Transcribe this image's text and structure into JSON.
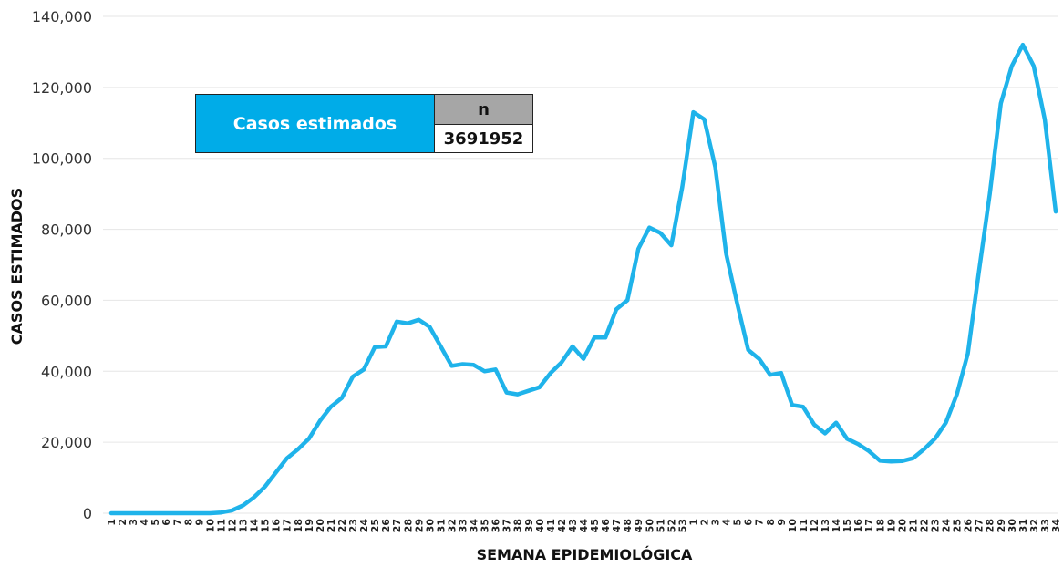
{
  "chart_data": {
    "type": "line",
    "ylabel": "CASOS ESTIMADOS",
    "xlabel": "SEMANA EPIDEMIOLÓGICA",
    "ylim": [
      0,
      140000
    ],
    "yticks": [
      "0",
      "20,000",
      "40,000",
      "60,000",
      "80,000",
      "100,000",
      "120,000",
      "140,000"
    ],
    "grid": "horizontal",
    "color": "#1fb3ea",
    "categories": [
      "1",
      "2",
      "3",
      "4",
      "5",
      "6",
      "7",
      "8",
      "9",
      "10",
      "11",
      "12",
      "13",
      "14",
      "15",
      "16",
      "17",
      "18",
      "19",
      "20",
      "21",
      "22",
      "23",
      "24",
      "25",
      "26",
      "27",
      "28",
      "29",
      "30",
      "31",
      "32",
      "33",
      "34",
      "35",
      "36",
      "37",
      "38",
      "39",
      "40",
      "41",
      "42",
      "43",
      "44",
      "45",
      "46",
      "47",
      "48",
      "49",
      "50",
      "51",
      "52",
      "53",
      "1",
      "2",
      "3",
      "4",
      "5",
      "6",
      "7",
      "8",
      "9",
      "10",
      "11",
      "12",
      "13",
      "14",
      "15",
      "16",
      "17",
      "18",
      "19",
      "20",
      "21",
      "22",
      "23",
      "24",
      "25",
      "26",
      "27",
      "28",
      "29",
      "30",
      "31",
      "32",
      "33",
      "34"
    ],
    "series": [
      {
        "values": [
          0,
          0,
          0,
          0,
          0,
          0,
          0,
          0,
          0,
          0,
          200,
          800,
          2200,
          4500,
          7500,
          11500,
          15500,
          18000,
          21000,
          26000,
          30000,
          32500,
          38500,
          40500,
          46800,
          47000,
          54000,
          53500,
          54500,
          52500,
          47000,
          41500,
          42000,
          41800,
          40000,
          40500,
          34000,
          33500,
          34500,
          35500,
          39500,
          42500,
          47000,
          43500,
          49500,
          49500,
          57500,
          60000,
          74500,
          80500,
          79000,
          75500,
          92000,
          113000,
          111000,
          97500,
          73000,
          59000,
          46000,
          43500,
          39000,
          39500,
          30500,
          30000,
          25000,
          22500,
          25500,
          21000,
          19500,
          17500,
          14800,
          14600,
          14700,
          15500,
          18000,
          21000,
          25500,
          33500,
          45000,
          68000,
          90000,
          115500,
          126000,
          132000,
          126000,
          111000,
          85000
        ]
      }
    ],
    "legend": {
      "label": "Casos estimados",
      "header": "n",
      "value": "3691952"
    }
  }
}
